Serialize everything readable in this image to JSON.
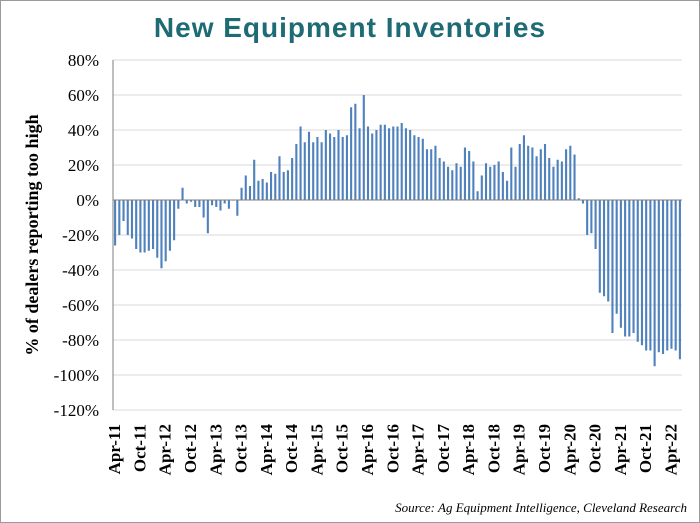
{
  "chart_data": {
    "type": "bar",
    "title": "New Equipment Inventories",
    "ylabel": "% of dealers reporting too high",
    "source": "Source: Ag Equipment Intelligence, Cleveland Research",
    "y_ticks": [
      "80%",
      "60%",
      "40%",
      "20%",
      "0%",
      "-20%",
      "-40%",
      "-60%",
      "-80%",
      "-100%",
      "-120%"
    ],
    "ylim": [
      -120,
      80
    ],
    "x_start": "Apr-11",
    "x_end": "Apr-22",
    "x_tick_labels": [
      "Apr-11",
      "Oct-11",
      "Apr-12",
      "Oct-12",
      "Apr-13",
      "Oct-13",
      "Apr-14",
      "Oct-14",
      "Apr-15",
      "Oct-15",
      "Apr-16",
      "Oct-16",
      "Apr-17",
      "Oct-17",
      "Apr-18",
      "Oct-18",
      "Apr-19",
      "Oct-19",
      "Apr-20",
      "Oct-20",
      "Apr-21",
      "Oct-21",
      "Apr-22"
    ],
    "bar_color": "#4f81bd",
    "values": [
      -26,
      -20,
      -12,
      -20,
      -22,
      -28,
      -30,
      -30,
      -29,
      -28,
      -33,
      -39,
      -35,
      -29,
      -23,
      -5,
      7,
      -2,
      -1,
      -4,
      -4,
      -10,
      -19,
      -3,
      -4,
      -6,
      -2,
      -5,
      0,
      -9,
      7,
      14,
      8,
      23,
      11,
      12,
      10,
      16,
      15,
      25,
      16,
      17,
      24,
      32,
      42,
      33,
      39,
      33,
      36,
      33,
      40,
      38,
      36,
      40,
      36,
      37,
      53,
      55,
      41,
      60,
      42,
      38,
      40,
      43,
      43,
      41,
      42,
      42,
      44,
      41,
      40,
      37,
      36,
      35,
      29,
      29,
      31,
      24,
      22,
      19,
      17,
      21,
      19,
      30,
      28,
      22,
      5,
      14,
      21,
      19,
      20,
      22,
      16,
      11,
      30,
      19,
      32,
      37,
      31,
      30,
      25,
      29,
      32,
      24,
      19,
      23,
      22,
      29,
      31,
      26,
      1,
      -2,
      -20,
      -19,
      -28,
      -53,
      -55,
      -58,
      -76,
      -65,
      -73,
      -78,
      -78,
      -76,
      -81,
      -83,
      -86,
      -86,
      -95,
      -87,
      -88,
      -86,
      -85,
      -86,
      -91
    ]
  }
}
